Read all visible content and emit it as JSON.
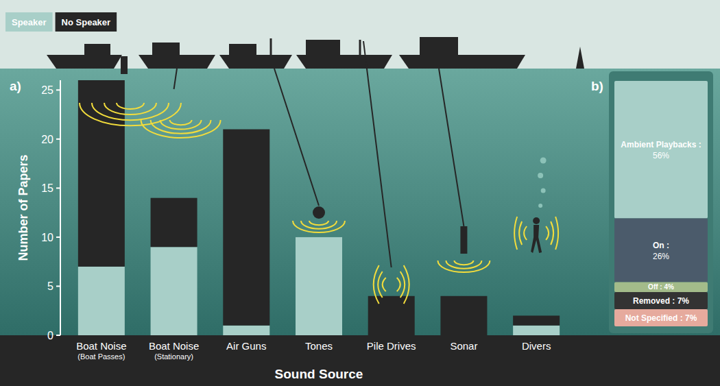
{
  "chart_data": [
    {
      "type": "bar",
      "stacked": true,
      "label": "a)",
      "x_label": "Sound Source",
      "y_label": "Number of Papers",
      "categories": [
        "Boat Noise (Boat Passes)",
        "Boat Noise (Stationary)",
        "Air Guns",
        "Tones",
        "Pile Drives",
        "Sonar",
        "Divers"
      ],
      "series": [
        {
          "name": "Speaker",
          "color": "#a8cfc8",
          "values": [
            7,
            9,
            1,
            10,
            0,
            0,
            1
          ]
        },
        {
          "name": "No Speaker",
          "color": "#262626",
          "values": [
            19,
            5,
            20,
            0,
            4,
            4,
            1
          ]
        }
      ],
      "ylim": [
        0,
        26
      ],
      "yticks": [
        0,
        5,
        10,
        15,
        20,
        25
      ],
      "grid": false,
      "legend": "top-left"
    },
    {
      "type": "bar",
      "stacked": true,
      "label": "b)",
      "categories": [
        null
      ],
      "series": [
        {
          "name": "Ambient Playbacks :",
          "color": "#a8cfc8",
          "values": [
            56
          ],
          "value_labels": [
            "56%"
          ]
        },
        {
          "name": "On :",
          "color": "#4b5b6b",
          "values": [
            26
          ],
          "value_labels": [
            "26%"
          ]
        },
        {
          "name": "Off :",
          "color": "#a3bb8a",
          "values": [
            4
          ],
          "value_labels": [
            "4%"
          ]
        },
        {
          "name": "Removed :",
          "color": "#333333",
          "values": [
            7
          ],
          "value_labels": [
            "7%"
          ]
        },
        {
          "name": "Not Specified :",
          "color": "#e6aa9d",
          "values": [
            7
          ],
          "value_labels": [
            "7%"
          ]
        }
      ],
      "ylim": [
        0,
        100
      ],
      "tick_labels": false,
      "data_labels": true
    }
  ]
}
